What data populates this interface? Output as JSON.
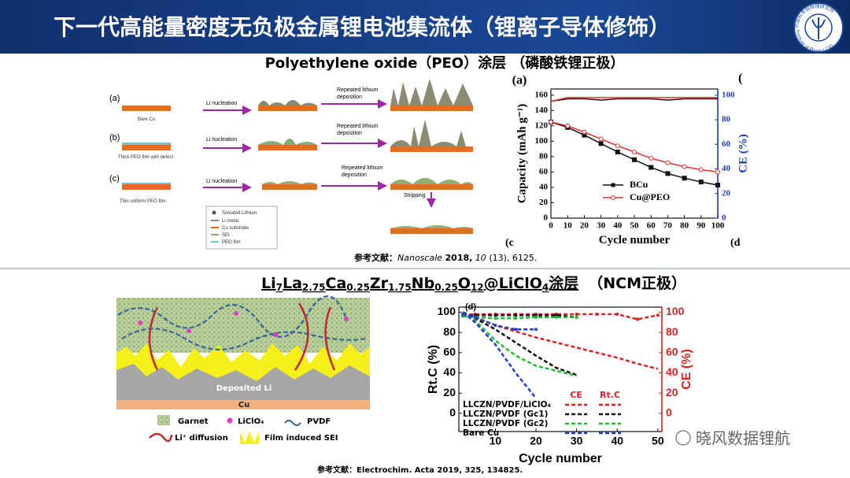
{
  "header": {
    "title": "下一代高能量密度无负极金属锂电池集流体（锂离子导体修饰）"
  },
  "logo": {
    "name_cn": "中国科学院物理研究所",
    "name_en": "Institute of Physics CAS"
  },
  "section_1": {
    "heading": "Polyethylene oxide（PEO）涂层 （磷酸铁锂正极）",
    "schematic": {
      "panel_labels": [
        "(a)",
        "(b)",
        "(c)"
      ],
      "substrate_labels": [
        "Bare Cu",
        "Thick PEO film with defect",
        "Thin uniform PEO film"
      ],
      "step_labels": [
        "Li nucleation",
        "Li nucleation",
        "Li nucleation"
      ],
      "deposition_labels": [
        [
          "Repeated lithium",
          "deposition"
        ],
        [
          "Repeated lithium",
          "deposition"
        ],
        [
          "Repeated lithium",
          "deposition"
        ]
      ],
      "stripping": "Stripping",
      "legend": [
        "Solvated Lithium",
        "Li metal",
        "Cu substrate",
        "SEI",
        "PEO film"
      ]
    },
    "chart": {
      "type": "line",
      "panel_label": "(a)",
      "xlabel": "Cycle number",
      "ylabel": "Capacity (mAh g⁻¹)",
      "y2label": "CE (%)",
      "xlim": [
        0,
        100
      ],
      "xticks": [
        0,
        10,
        20,
        30,
        40,
        50,
        60,
        70,
        80,
        90,
        100
      ],
      "ylim": [
        0,
        168
      ],
      "yticks": [
        0,
        20,
        40,
        60,
        80,
        100,
        120,
        140,
        160
      ],
      "y2lim": [
        0,
        105
      ],
      "y2ticks": [
        0,
        20,
        40,
        60,
        80,
        100
      ],
      "y2color": "#1f3fbf",
      "legend": "lower center",
      "series": [
        {
          "name": "BCu",
          "color": "#111111",
          "marker": "square",
          "x": [
            0,
            10,
            20,
            30,
            40,
            50,
            60,
            70,
            80,
            90,
            100
          ],
          "values": [
            125,
            118,
            108,
            97,
            86,
            76,
            66,
            58,
            52,
            47,
            43
          ],
          "ce": [
            95,
            97,
            97,
            96,
            97,
            97,
            97,
            96,
            97,
            97,
            97
          ]
        },
        {
          "name": "Cu@PEO",
          "color": "#e03030",
          "marker": "circle",
          "x": [
            0,
            10,
            20,
            30,
            40,
            50,
            60,
            70,
            80,
            90,
            100
          ],
          "values": [
            125,
            120,
            112,
            103,
            94,
            86,
            78,
            72,
            67,
            63,
            60
          ],
          "ce": [
            95,
            98,
            98,
            98,
            98,
            98,
            98,
            98,
            98,
            98,
            98
          ]
        }
      ]
    },
    "cropped_labels": [
      "(",
      "(c",
      "(d"
    ],
    "reference": {
      "label": "参考文献：",
      "journal": "Nanoscale",
      "year": "2018,",
      "volume": "10",
      "rest": "(13), 6125."
    }
  },
  "section_2": {
    "heading_parts": [
      "Li",
      "7",
      "La",
      "2.75",
      "Ca",
      "0.25",
      "Zr",
      "1.75",
      "Nb",
      "0.25",
      "O",
      "12",
      "@LiClO",
      "4",
      "涂层"
    ],
    "heading_suffix": "（NCM正极）",
    "schematic": {
      "labels": [
        "Deposited Li",
        "Cu"
      ],
      "legend": [
        "Garnet",
        "LiClO₄",
        "PVDF",
        "Li⁺ diffusion",
        "Film induced SEI"
      ]
    },
    "chart": {
      "type": "line",
      "panel_label": "(d)",
      "xlabel": "Cycle number",
      "ylabel": "Rt.C (%)",
      "y2label": "CE (%)",
      "xlim": [
        1,
        51
      ],
      "xticks": [
        10,
        20,
        30,
        40,
        50
      ],
      "ylim": [
        -18,
        105
      ],
      "yticks": [
        0,
        20,
        40,
        60,
        80,
        100
      ],
      "y2lim": [
        -18,
        105
      ],
      "y2ticks": [
        0,
        20,
        40,
        60,
        80,
        100
      ],
      "y2color": "#e02020",
      "legend_columns": [
        "CE",
        "Rt.C"
      ],
      "series": [
        {
          "name": "LLCZN/PVDF/LiClO₄",
          "color": "#e02020",
          "x": [
            2,
            5,
            10,
            15,
            20,
            25,
            30,
            35,
            40,
            45,
            50
          ],
          "ce": [
            97,
            98,
            98,
            98,
            98,
            98,
            98,
            98,
            98,
            93,
            97
          ],
          "values": [
            100,
            95,
            87,
            81,
            75,
            70,
            65,
            60,
            55,
            49,
            44
          ]
        },
        {
          "name": "LLCZN/PVDF (Gc1)",
          "color": "#111111",
          "x": [
            2,
            5,
            10,
            15,
            20,
            25,
            30
          ],
          "ce": [
            96,
            97,
            97,
            97,
            97,
            97,
            95
          ],
          "values": [
            100,
            94,
            83,
            70,
            57,
            45,
            38
          ]
        },
        {
          "name": "LLCZN/PVDF (Gc2)",
          "color": "#22bb33",
          "x": [
            2,
            5,
            10,
            15,
            20,
            25,
            30
          ],
          "ce": [
            96,
            95,
            94,
            94,
            95,
            95,
            95
          ],
          "values": [
            100,
            92,
            72,
            57,
            47,
            42,
            37
          ]
        },
        {
          "name": "Bare Cu",
          "color": "#2040d0",
          "x": [
            2,
            5,
            10,
            15,
            20
          ],
          "ce": [
            98,
            95,
            87,
            83,
            83
          ],
          "values": [
            100,
            90,
            68,
            40,
            15
          ]
        }
      ]
    },
    "reference": {
      "label": "参考文献：",
      "text": "Electrochim. Acta 2019, 325, 134825."
    }
  },
  "watermark": "晓风数据锂航"
}
